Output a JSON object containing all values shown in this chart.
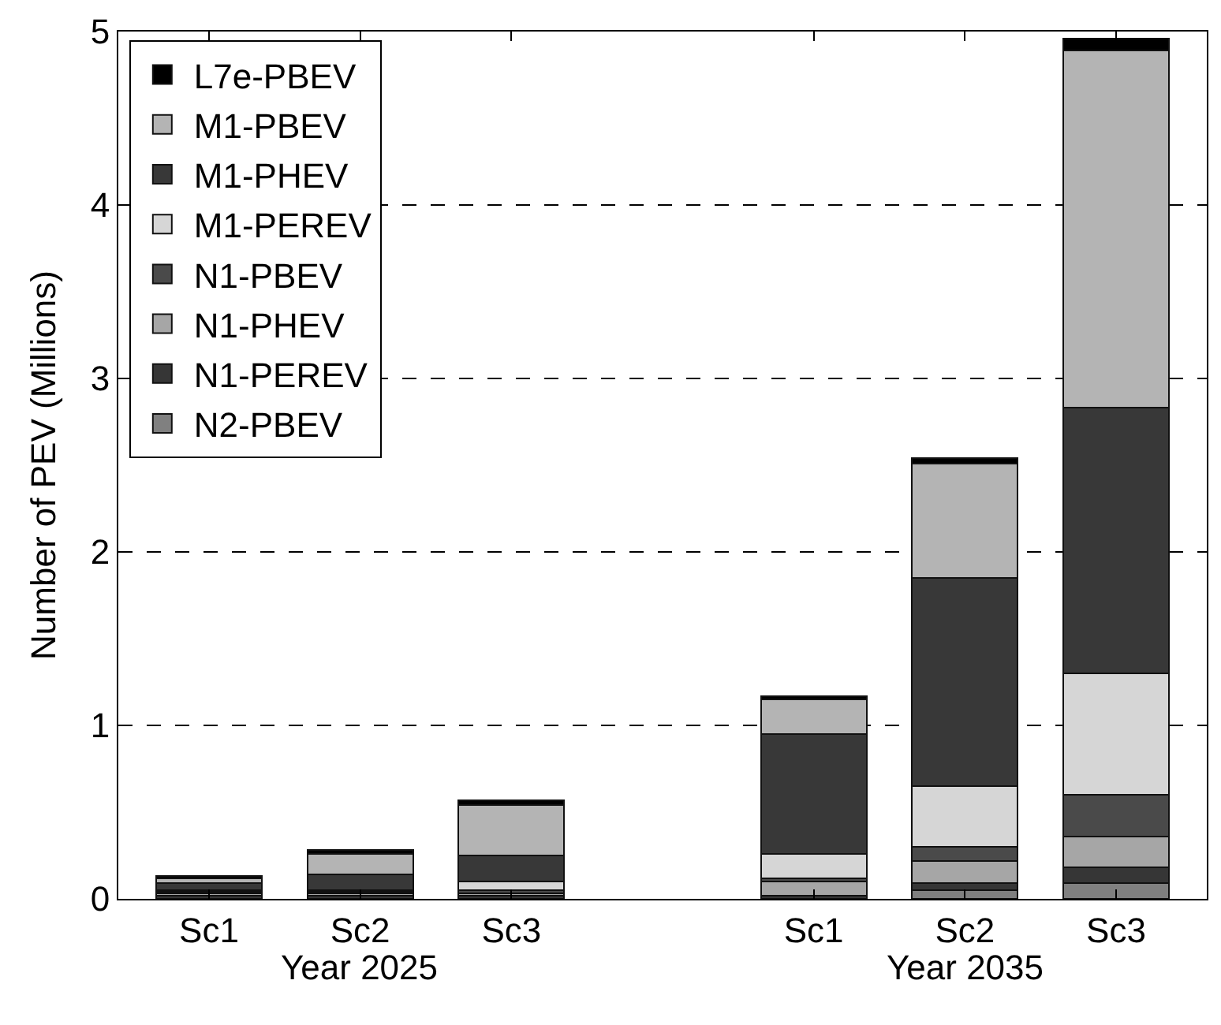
{
  "chart_data": {
    "type": "bar",
    "stacked": true,
    "ylabel": "Number of PEV (Millions)",
    "categories": [
      "Sc1",
      "Sc2",
      "Sc3",
      null,
      "Sc1",
      "Sc2",
      "Sc3"
    ],
    "series": [
      {
        "name": "N2-PBEV",
        "color": "#808080",
        "values": [
          null,
          null,
          null,
          null,
          null,
          0.05,
          0.09
        ]
      },
      {
        "name": "N1-PEREV",
        "color": "#363636",
        "values": [
          0.02,
          0.02,
          0.02,
          null,
          0.02,
          0.04,
          0.09
        ]
      },
      {
        "name": "N1-PHEV",
        "color": "#a6a6a6",
        "values": [
          0.01,
          0.01,
          0.01,
          null,
          0.08,
          0.13,
          0.18
        ]
      },
      {
        "name": "N1-PBEV",
        "color": "#4a4a4a",
        "values": [
          0.01,
          0.01,
          0.02,
          null,
          0.02,
          0.08,
          0.24
        ]
      },
      {
        "name": "M1-PEREV",
        "color": "#d6d6d6",
        "values": [
          0.01,
          0.01,
          0.05,
          null,
          0.14,
          0.35,
          0.7
        ]
      },
      {
        "name": "M1-PHEV",
        "color": "#383838",
        "values": [
          0.04,
          0.09,
          0.15,
          null,
          0.69,
          1.2,
          1.53
        ]
      },
      {
        "name": "M1-PBEV",
        "color": "#b4b4b4",
        "values": [
          0.03,
          0.12,
          0.29,
          null,
          0.2,
          0.66,
          2.06
        ]
      },
      {
        "name": "L7e-PBEV",
        "color": "#000000",
        "values": [
          0.01,
          0.02,
          0.03,
          null,
          0.02,
          0.03,
          0.07
        ]
      }
    ],
    "ylim": [
      0,
      5
    ],
    "yticks": [
      0,
      1,
      2,
      3,
      4,
      5
    ],
    "grid": "y",
    "legend": "top left",
    "annotations": [
      "Year 2025",
      "Year 2035"
    ]
  }
}
